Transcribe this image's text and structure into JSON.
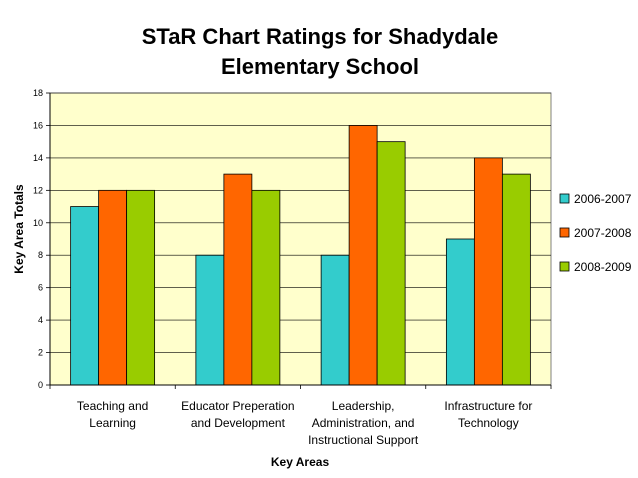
{
  "colors": {
    "plot_background": "#ffffcc",
    "gridline": "#000000",
    "axis": "#808080",
    "series": [
      "#33cccc",
      "#ff6600",
      "#99cc00"
    ]
  },
  "chart_data": {
    "type": "bar",
    "title_lines": [
      "STaR Chart Ratings for Shadydale",
      "Elementary School"
    ],
    "xlabel": "Key Areas",
    "ylabel": "Key Area Totals",
    "categories": [
      [
        "Teaching and",
        "Learning"
      ],
      [
        "Educator Preperation",
        "and Development"
      ],
      [
        "Leadership,",
        "Administration, and",
        "Instructional Support"
      ],
      [
        "Infrastructure for",
        "Technology"
      ]
    ],
    "series": [
      {
        "name": "2006-2007",
        "values": [
          11,
          8,
          8,
          9
        ]
      },
      {
        "name": "2007-2008",
        "values": [
          12,
          13,
          16,
          14
        ]
      },
      {
        "name": "2008-2009",
        "values": [
          12,
          12,
          15,
          13
        ]
      }
    ],
    "ylim": [
      0,
      18
    ],
    "yticks": [
      0,
      2,
      4,
      6,
      8,
      10,
      12,
      14,
      16,
      18
    ],
    "grid": true,
    "legend_position": "right"
  }
}
